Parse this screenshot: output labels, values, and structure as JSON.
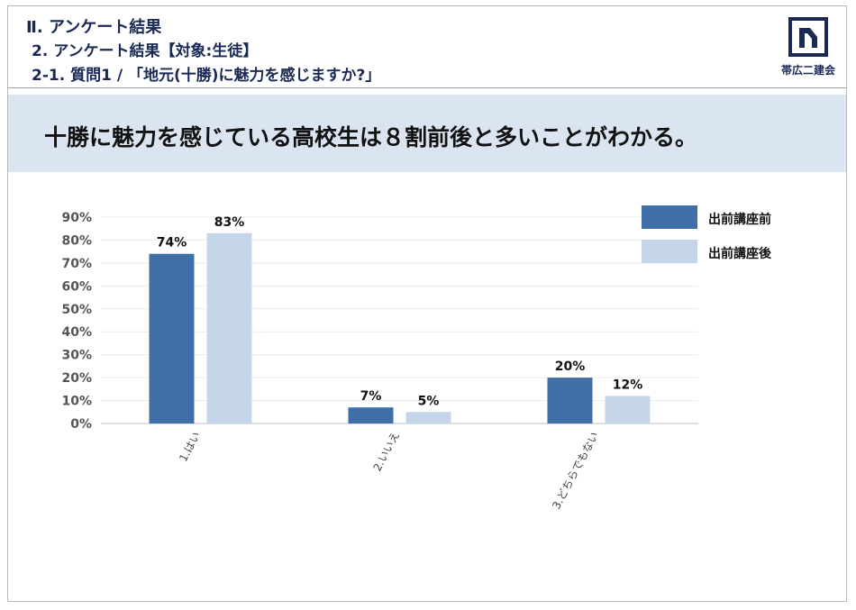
{
  "header": {
    "line1": "Ⅱ. アンケート結果",
    "line2": "2. アンケート結果【対象:生徒】",
    "line3": "2-1. 質問1 / 「地元(十勝)に魅力を感じますか?」",
    "logo_text": "帯広二建会"
  },
  "banner": {
    "text": "十勝に魅力を感じている高校生は８割前後と多いことがわかる。"
  },
  "colors": {
    "before": "#3f6fa6",
    "after": "#c4d5ea",
    "banner_bg": "#dbe5f1",
    "header_text": "#1a2a55"
  },
  "chart_data": {
    "type": "bar",
    "categories": [
      "1.はい",
      "2.いいえ",
      "3.どちらでもない"
    ],
    "series": [
      {
        "name": "出前講座前",
        "values": [
          74,
          7,
          20
        ],
        "labels": [
          "74%",
          "7%",
          "20%"
        ]
      },
      {
        "name": "出前講座後",
        "values": [
          83,
          5,
          12
        ],
        "labels": [
          "83%",
          "5%",
          "12%"
        ]
      }
    ],
    "ylim": [
      0,
      90
    ],
    "yticks": [
      "0%",
      "10%",
      "20%",
      "30%",
      "40%",
      "50%",
      "60%",
      "70%",
      "80%",
      "90%"
    ],
    "legend_position": "top-right",
    "grid": true
  }
}
